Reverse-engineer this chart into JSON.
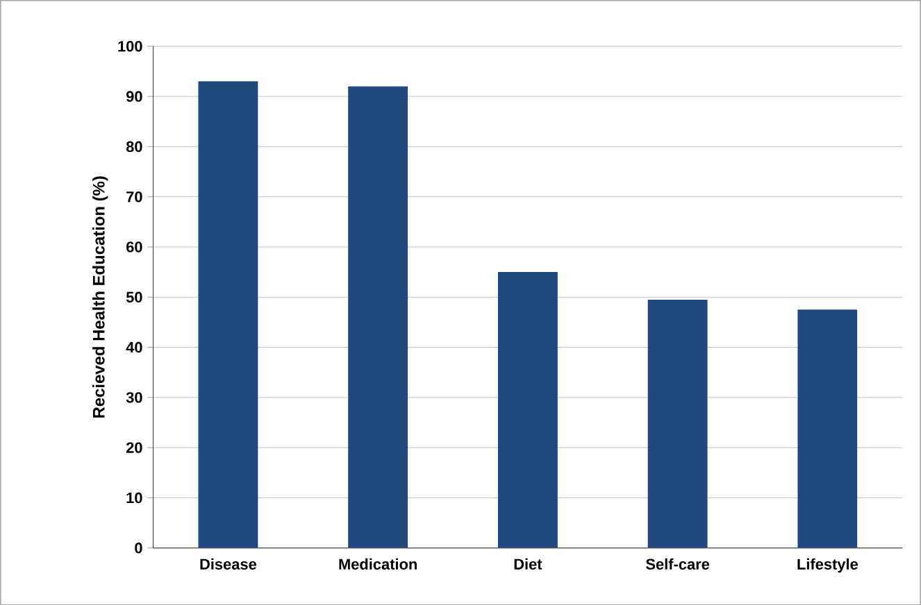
{
  "chart_data": {
    "type": "bar",
    "ylabel": "Recieved Health Education  (%)",
    "categories": [
      "Disease",
      "Medication",
      "Diet",
      "Self-care",
      "Lifestyle"
    ],
    "values": [
      93,
      92,
      55,
      49.5,
      47.5
    ],
    "color": "#1f497d",
    "ylim": [
      0,
      100
    ],
    "yticks": [
      0,
      10,
      20,
      30,
      40,
      50,
      60,
      70,
      80,
      90,
      100
    ],
    "grid": "y"
  }
}
